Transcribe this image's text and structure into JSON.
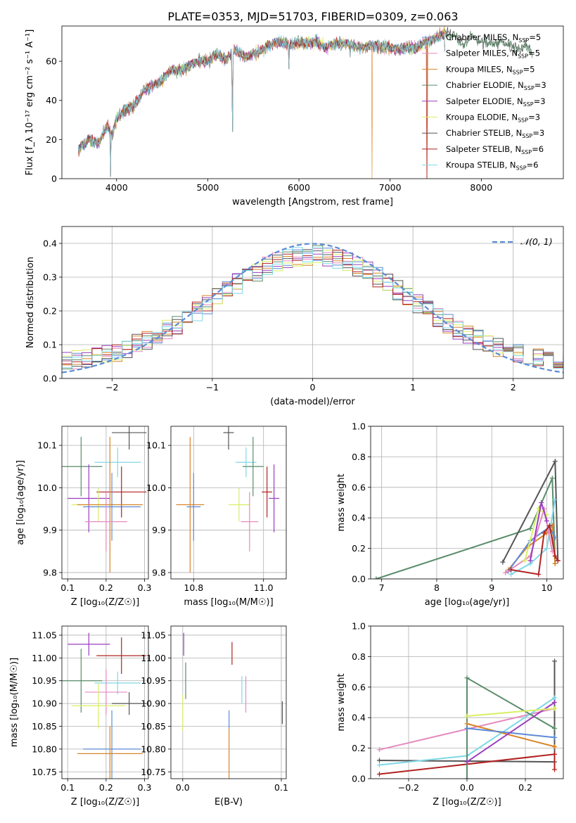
{
  "figure": {
    "title": "PLATE=0353, MJD=51703, FIBERID=0309, z=0.063"
  },
  "colors": {
    "Chabrier MILES": "#5b8bd6",
    "Salpeter MILES": "#e58ac0",
    "Kroupa MILES": "#d7852a",
    "Chabrier ELODIE": "#5a8c6a",
    "Salpeter ELODIE": "#9a3fbf",
    "Kroupa ELODIE": "#d9ef63",
    "Chabrier STELIB": "#555555",
    "Salpeter STELIB": "#b22222",
    "Kroupa STELIB": "#7fd8e6"
  },
  "chart_data": [
    {
      "id": "spectrum",
      "type": "line",
      "xlabel": "wavelength [Angstrom, rest frame]",
      "ylabel": "Flux [f_λ 10⁻¹⁷ erg cm⁻² s⁻¹ A⁻¹]",
      "xlim": [
        3400,
        8900
      ],
      "ylim": [
        0,
        78
      ],
      "xticks": [
        4000,
        5000,
        6000,
        7000,
        8000
      ],
      "yticks": [
        0,
        20,
        40,
        60
      ],
      "grid": false,
      "legend_position": "top-right",
      "legend": [
        {
          "label": "Chabrier MILES, N",
          "sub": "SSP",
          "tail": "=5"
        },
        {
          "label": "Salpeter MILES, N",
          "sub": "SSP",
          "tail": "=5"
        },
        {
          "label": "Kroupa MILES, N",
          "sub": "SSP",
          "tail": "=5"
        },
        {
          "label": "Chabrier ELODIE, N",
          "sub": "SSP",
          "tail": "=3"
        },
        {
          "label": "Salpeter ELODIE, N",
          "sub": "SSP",
          "tail": "=3"
        },
        {
          "label": "Kroupa ELODIE, N",
          "sub": "SSP",
          "tail": "=3"
        },
        {
          "label": "Chabrier STELIB, N",
          "sub": "SSP",
          "tail": "=3"
        },
        {
          "label": "Salpeter STELIB, N",
          "sub": "SSP",
          "tail": "=6"
        },
        {
          "label": "Kroupa STELIB, N",
          "sub": "SSP",
          "tail": "=6"
        }
      ],
      "continuum": {
        "x": [
          3580,
          3700,
          3800,
          3900,
          3950,
          4000,
          4100,
          4200,
          4300,
          4400,
          4500,
          4600,
          4700,
          4800,
          4900,
          5000,
          5100,
          5200,
          5300,
          5400,
          5500,
          5600,
          5700,
          5800,
          5900,
          6000,
          6100,
          6200,
          6300,
          6400,
          6500,
          6600,
          6700,
          6800,
          6900,
          7000,
          7100,
          7200,
          7300,
          7400,
          7500,
          7600
        ],
        "y": [
          15,
          20,
          18,
          27,
          22,
          31,
          35,
          38,
          45,
          48,
          50,
          56,
          55,
          58,
          60,
          60,
          64,
          61,
          66,
          62,
          64,
          66,
          69,
          70,
          68,
          70,
          69,
          70,
          67,
          69,
          69,
          68,
          67,
          68,
          67,
          67,
          66,
          67,
          67,
          70,
          72,
          74
        ]
      },
      "features": [
        {
          "x": 3933,
          "y": 1
        },
        {
          "x": 5269,
          "y": 46
        },
        {
          "x": 5272,
          "y": 24
        },
        {
          "x": 5890,
          "y": 56
        },
        {
          "x": 6563,
          "y": 62
        },
        {
          "x": 7600,
          "y": 65
        }
      ],
      "dropouts": [
        {
          "series": "Kroupa MILES",
          "x": 6800
        },
        {
          "series": "Salpeter STELIB",
          "x": 7400
        },
        {
          "series": "Kroupa MILES",
          "x": 7410
        }
      ],
      "red_tail": {
        "x": [
          7600,
          7700,
          7800,
          7900,
          8000,
          8100,
          8200,
          8300,
          8400,
          8500,
          8560
        ],
        "y": [
          74,
          73,
          69,
          72,
          70,
          69,
          70,
          68,
          66,
          68,
          64
        ]
      }
    },
    {
      "id": "residuals",
      "type": "histogram",
      "xlabel": "(data-model)/error",
      "ylabel": "Normed distribution",
      "xlim": [
        -2.5,
        2.5
      ],
      "ylim": [
        0,
        0.45
      ],
      "xticks": [
        -2,
        -1,
        0,
        1,
        2
      ],
      "yticks": [
        0.0,
        0.1,
        0.2,
        0.3,
        0.4
      ],
      "grid": true,
      "legend_position": "top-right",
      "legend_label": "𝒩(0, 1)",
      "bin_width": 0.1,
      "reference_curve": {
        "name": "𝒩(0, 1)",
        "mean": 0,
        "sigma": 1,
        "color": "#5b8bd6",
        "style": "dashed"
      }
    },
    {
      "id": "age-vs-Z",
      "type": "errorbar",
      "xlabel": "Z [log₁₀(Z/Z☉)]",
      "ylabel": "age  [log₁₀(age/yr)]",
      "xlim": [
        0.085,
        0.31
      ],
      "ylim": [
        9.785,
        10.145
      ],
      "xticks": [
        0.1,
        0.2,
        0.3
      ],
      "yticks": [
        9.8,
        9.9,
        10.0,
        10.1
      ],
      "grid": true,
      "points": [
        {
          "series": "Chabrier STELIB",
          "x": 0.26,
          "y": 10.13,
          "ex": 0.045,
          "ey": 0.04
        },
        {
          "series": "Kroupa STELIB",
          "x": 0.23,
          "y": 10.06,
          "ex": 0.06,
          "ey": 0.035
        },
        {
          "series": "Chabrier ELODIE",
          "x": 0.135,
          "y": 10.05,
          "ex": 0.055,
          "ey": 0.07
        },
        {
          "series": "Salpeter STELIB",
          "x": 0.24,
          "y": 9.99,
          "ex": 0.065,
          "ey": 0.06
        },
        {
          "series": "Salpeter ELODIE",
          "x": 0.155,
          "y": 9.975,
          "ex": 0.055,
          "ey": 0.08
        },
        {
          "series": "Kroupa ELODIE",
          "x": 0.18,
          "y": 9.96,
          "ex": 0.07,
          "ey": 0.04
        },
        {
          "series": "Kroupa MILES",
          "x": 0.21,
          "y": 9.96,
          "ex": 0.085,
          "ey": 0.16
        },
        {
          "series": "Chabrier MILES",
          "x": 0.215,
          "y": 9.955,
          "ex": 0.075,
          "ey": 0.08
        },
        {
          "series": "Salpeter MILES",
          "x": 0.2,
          "y": 9.92,
          "ex": 0.055,
          "ey": 0.07
        }
      ]
    },
    {
      "id": "age-vs-mass",
      "type": "errorbar",
      "xlabel": "mass [log₁₀(M/M☉)]",
      "ylabel": "",
      "xlim": [
        10.735,
        11.065
      ],
      "ylim": [
        9.785,
        10.145
      ],
      "xticks": [
        10.8,
        11.0
      ],
      "yticks": [
        9.8,
        9.9,
        10.0,
        10.1
      ],
      "grid": true,
      "points": [
        {
          "series": "Chabrier STELIB",
          "x": 10.9,
          "y": 10.13,
          "ex": 0.015,
          "ey": 0.04
        },
        {
          "series": "Kroupa STELIB",
          "x": 10.95,
          "y": 10.06,
          "ex": 0.03,
          "ey": 0.035
        },
        {
          "series": "Chabrier ELODIE",
          "x": 10.97,
          "y": 10.05,
          "ex": 0.03,
          "ey": 0.07
        },
        {
          "series": "Salpeter STELIB",
          "x": 11.01,
          "y": 9.99,
          "ex": 0.015,
          "ey": 0.06
        },
        {
          "series": "Salpeter ELODIE",
          "x": 11.03,
          "y": 9.975,
          "ex": 0.015,
          "ey": 0.08
        },
        {
          "series": "Kroupa ELODIE",
          "x": 10.93,
          "y": 9.96,
          "ex": 0.03,
          "ey": 0.04
        },
        {
          "series": "Kroupa MILES",
          "x": 10.79,
          "y": 9.96,
          "ex": 0.04,
          "ey": 0.16
        },
        {
          "series": "Chabrier MILES",
          "x": 10.8,
          "y": 9.955,
          "ex": 0.02,
          "ey": 0.08
        },
        {
          "series": "Salpeter MILES",
          "x": 10.96,
          "y": 9.92,
          "ex": 0.025,
          "ey": 0.07
        }
      ]
    },
    {
      "id": "weight-vs-age",
      "type": "line",
      "xlabel": "age  [log₁₀(age/yr)]",
      "ylabel": "mass weight",
      "xlim": [
        6.8,
        10.3
      ],
      "ylim": [
        0,
        1
      ],
      "xticks": [
        7,
        8,
        9,
        10
      ],
      "yticks": [
        0.0,
        0.2,
        0.4,
        0.6,
        0.8,
        1.0
      ],
      "grid": true,
      "series": [
        {
          "name": "Chabrier ELODIE",
          "x": [
            6.9,
            9.7,
            10.1,
            10.15
          ],
          "y": [
            0.0,
            0.33,
            0.66,
            0.1
          ]
        },
        {
          "name": "Chabrier STELIB",
          "x": [
            9.2,
            10.15,
            10.2
          ],
          "y": [
            0.11,
            0.77,
            0.12
          ]
        },
        {
          "name": "Kroupa MILES",
          "x": [
            9.3,
            9.65,
            10.0,
            10.1,
            10.15
          ],
          "y": [
            0.06,
            0.21,
            0.3,
            0.35,
            0.1
          ]
        },
        {
          "name": "Chabrier MILES",
          "x": [
            9.3,
            9.7,
            10.05,
            10.15
          ],
          "y": [
            0.05,
            0.25,
            0.34,
            0.27
          ]
        },
        {
          "name": "Kroupa STELIB",
          "x": [
            9.35,
            9.7,
            10.0,
            10.15
          ],
          "y": [
            0.03,
            0.1,
            0.2,
            0.52
          ]
        },
        {
          "name": "Salpeter MILES",
          "x": [
            9.25,
            9.7,
            9.95,
            10.1
          ],
          "y": [
            0.04,
            0.15,
            0.46,
            0.18
          ]
        },
        {
          "name": "Kroupa ELODIE",
          "x": [
            9.6,
            9.85,
            10.0
          ],
          "y": [
            0.12,
            0.46,
            0.42
          ]
        },
        {
          "name": "Salpeter ELODIE",
          "x": [
            9.7,
            9.9,
            10.0
          ],
          "y": [
            0.12,
            0.5,
            0.38
          ]
        },
        {
          "name": "Salpeter STELIB",
          "x": [
            9.35,
            9.85,
            9.95,
            10.05,
            10.15,
            10.2
          ],
          "y": [
            0.06,
            0.03,
            0.3,
            0.35,
            0.15,
            0.12
          ]
        }
      ]
    },
    {
      "id": "mass-vs-Z",
      "type": "errorbar",
      "xlabel": "Z [log₁₀(Z/Z☉)]",
      "ylabel": "mass [log₁₀(M/M☉)]",
      "xlim": [
        0.085,
        0.31
      ],
      "ylim": [
        10.735,
        11.07
      ],
      "xticks": [
        0.1,
        0.2,
        0.3
      ],
      "yticks": [
        10.75,
        10.8,
        10.85,
        10.9,
        10.95,
        11.0,
        11.05
      ],
      "grid": true,
      "points": [
        {
          "series": "Salpeter ELODIE",
          "x": 0.155,
          "y": 11.03,
          "ex": 0.055,
          "ey": 0.025
        },
        {
          "series": "Salpeter STELIB",
          "x": 0.24,
          "y": 11.005,
          "ex": 0.065,
          "ey": 0.04
        },
        {
          "series": "Chabrier ELODIE",
          "x": 0.135,
          "y": 10.95,
          "ex": 0.055,
          "ey": 0.07
        },
        {
          "series": "Kroupa STELIB",
          "x": 0.23,
          "y": 10.945,
          "ex": 0.06,
          "ey": 0.025
        },
        {
          "series": "Salpeter MILES",
          "x": 0.2,
          "y": 10.925,
          "ex": 0.055,
          "ey": 0.05
        },
        {
          "series": "Chabrier STELIB",
          "x": 0.26,
          "y": 10.9,
          "ex": 0.045,
          "ey": 0.025
        },
        {
          "series": "Kroupa ELODIE",
          "x": 0.18,
          "y": 10.895,
          "ex": 0.07,
          "ey": 0.05
        },
        {
          "series": "Chabrier MILES",
          "x": 0.215,
          "y": 10.8,
          "ex": 0.075,
          "ey": 0.085
        },
        {
          "series": "Kroupa MILES",
          "x": 0.21,
          "y": 10.79,
          "ex": 0.085,
          "ey": 0.06
        }
      ]
    },
    {
      "id": "mass-vs-EBV",
      "type": "errorbar",
      "xlabel": "E(B-V)",
      "ylabel": "",
      "xlim": [
        -0.012,
        0.105
      ],
      "ylim": [
        10.735,
        11.07
      ],
      "xticks": [
        0.0,
        0.1
      ],
      "yticks": [
        10.75,
        10.8,
        10.85,
        10.9,
        10.95,
        11.0,
        11.05
      ],
      "grid": true,
      "points": [
        {
          "series": "Salpeter ELODIE",
          "x": 0.001,
          "y": 11.03,
          "ex": 0,
          "ey": 0.025
        },
        {
          "series": "Salpeter STELIB",
          "x": 0.05,
          "y": 11.01,
          "ex": 0,
          "ey": 0.025
        },
        {
          "series": "Chabrier ELODIE",
          "x": 0.003,
          "y": 10.95,
          "ex": 0,
          "ey": 0.04
        },
        {
          "series": "Kroupa STELIB",
          "x": 0.06,
          "y": 10.93,
          "ex": 0,
          "ey": 0.03
        },
        {
          "series": "Salpeter MILES",
          "x": 0.064,
          "y": 10.92,
          "ex": 0,
          "ey": 0.04
        },
        {
          "series": "Chabrier STELIB",
          "x": 0.101,
          "y": 10.88,
          "ex": 0,
          "ey": 0.025
        },
        {
          "series": "Kroupa ELODIE",
          "x": 0.0,
          "y": 10.88,
          "ex": 0,
          "ey": 0.04
        },
        {
          "series": "Chabrier MILES",
          "x": 0.047,
          "y": 10.865,
          "ex": 0,
          "ey": 0.02
        },
        {
          "series": "Kroupa MILES",
          "x": 0.047,
          "y": 10.785,
          "ex": 0,
          "ey": 0.06
        }
      ]
    },
    {
      "id": "weight-vs-Z",
      "type": "line",
      "xlabel": "Z [log₁₀(Z/Z☉)]",
      "ylabel": "mass weight",
      "xlim": [
        -0.33,
        0.33
      ],
      "ylim": [
        0,
        1
      ],
      "xticks": [
        -0.2,
        0.0,
        0.2
      ],
      "yticks": [
        0.0,
        0.2,
        0.4,
        0.6,
        0.8,
        1.0
      ],
      "grid": true,
      "series": [
        {
          "name": "Salpeter MILES",
          "x": [
            -0.3,
            0.3
          ],
          "y": [
            0.19,
            0.46
          ]
        },
        {
          "name": "Chabrier STELIB",
          "x": [
            -0.3,
            0.3,
            0.3
          ],
          "y": [
            0.12,
            0.11,
            0.77
          ]
        },
        {
          "name": "Salpeter STELIB",
          "x": [
            -0.3,
            0.3,
            0.3
          ],
          "y": [
            0.03,
            0.16,
            0.06
          ]
        },
        {
          "name": "Kroupa STELIB",
          "x": [
            -0.3,
            0.0,
            0.3
          ],
          "y": [
            0.09,
            0.15,
            0.53
          ]
        },
        {
          "name": "Chabrier ELODIE",
          "x": [
            0.0,
            0.0,
            0.3
          ],
          "y": [
            0.0,
            0.66,
            0.33
          ]
        },
        {
          "name": "Kroupa MILES",
          "x": [
            0.0,
            0.3
          ],
          "y": [
            0.36,
            0.21
          ]
        },
        {
          "name": "Chabrier MILES",
          "x": [
            0.0,
            0.3
          ],
          "y": [
            0.33,
            0.27
          ]
        },
        {
          "name": "Salpeter ELODIE",
          "x": [
            0.0,
            0.3
          ],
          "y": [
            0.11,
            0.5
          ]
        },
        {
          "name": "Kroupa ELODIE",
          "x": [
            0.0,
            0.3
          ],
          "y": [
            0.41,
            0.46
          ]
        }
      ]
    }
  ]
}
